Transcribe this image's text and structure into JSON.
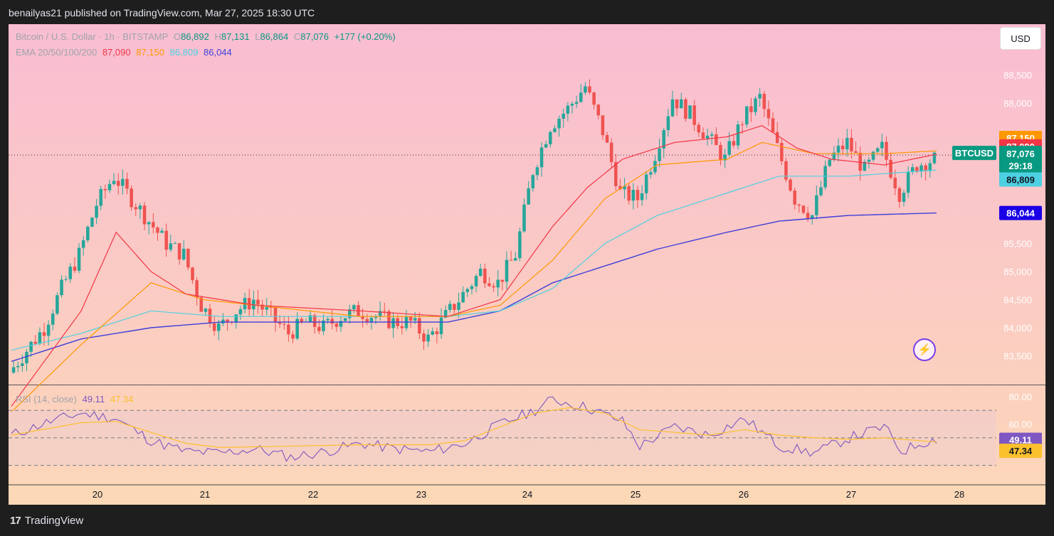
{
  "header": {
    "publisher": "benailyas21 published on TradingView.com, Mar 27, 2025 18:30 UTC"
  },
  "legend": {
    "symbol": "Bitcoin / U.S. Dollar · 1h · BITSTAMP",
    "o_label": "O",
    "o": "86,892",
    "h_label": "H",
    "h": "87,131",
    "l_label": "L",
    "l": "86,864",
    "c_label": "C",
    "c": "87,076",
    "change": "+177 (+0.20%)",
    "ema_label": "EMA 20/50/100/200",
    "ema20": "87,090",
    "ema50": "87,150",
    "ema100": "86,809",
    "ema200": "86,044"
  },
  "rsi_legend": {
    "label": "RSI (14, close)",
    "rsi": "49.11",
    "ma": "47.34"
  },
  "currency_button": "USD",
  "footer": {
    "brand": "TradingView",
    "logo": "17"
  },
  "colors": {
    "up": "#26a69a",
    "down": "#ef5350",
    "ema20": "#f23645",
    "ema50": "#ff9800",
    "ema100": "#4dd0e1",
    "ema200": "#3f3fd9",
    "rsi": "#7e57c2",
    "rsi_ma": "#fbc02d"
  },
  "chart_data": {
    "type": "candlestick",
    "symbol": "BTCUSD",
    "interval": "1h",
    "x_ticks": [
      "20",
      "21",
      "22",
      "23",
      "24",
      "25",
      "26",
      "27",
      "28"
    ],
    "y_ticks": [
      "83,500",
      "84,000",
      "84,500",
      "85,000",
      "85,500",
      "88,000",
      "88,500"
    ],
    "ylim": [
      83000,
      88900
    ],
    "price_badges": [
      {
        "label": "87,150",
        "kind": "ema50"
      },
      {
        "label": "87,090",
        "kind": "ema20"
      },
      {
        "label": "BTCUSD",
        "kind": "symbol"
      },
      {
        "label": "87,076",
        "kind": "price"
      },
      {
        "label": "29:18",
        "kind": "countdown"
      },
      {
        "label": "86,809",
        "kind": "ema100"
      },
      {
        "label": "86,044",
        "kind": "ema200"
      }
    ],
    "last_price": 87076,
    "price_anchors": [
      [
        0,
        83200
      ],
      [
        1,
        83600
      ],
      [
        2,
        84000
      ],
      [
        3,
        84700
      ],
      [
        4,
        85300
      ],
      [
        5,
        86200
      ],
      [
        6,
        86700
      ],
      [
        7,
        86300
      ],
      [
        8,
        85900
      ],
      [
        9,
        85500
      ],
      [
        10,
        85300
      ],
      [
        11,
        84400
      ],
      [
        12,
        84000
      ],
      [
        13,
        84300
      ],
      [
        14,
        84500
      ],
      [
        15,
        84200
      ],
      [
        16,
        83900
      ],
      [
        17,
        84100
      ],
      [
        18,
        84000
      ],
      [
        19,
        84200
      ],
      [
        20,
        84300
      ],
      [
        21,
        84200
      ],
      [
        22,
        84100
      ],
      [
        23,
        84100
      ],
      [
        24,
        83800
      ],
      [
        25,
        84200
      ],
      [
        26,
        84600
      ],
      [
        27,
        85000
      ],
      [
        28,
        84800
      ],
      [
        29,
        85300
      ],
      [
        30,
        86800
      ],
      [
        31,
        87600
      ],
      [
        32,
        87900
      ],
      [
        33,
        88300
      ],
      [
        34,
        87500
      ],
      [
        35,
        86400
      ],
      [
        36,
        86300
      ],
      [
        37,
        87100
      ],
      [
        38,
        88100
      ],
      [
        39,
        87800
      ],
      [
        40,
        87400
      ],
      [
        41,
        87000
      ],
      [
        42,
        87700
      ],
      [
        43,
        88100
      ],
      [
        44,
        87200
      ],
      [
        45,
        86300
      ],
      [
        46,
        86000
      ],
      [
        47,
        87000
      ],
      [
        48,
        87300
      ],
      [
        49,
        86800
      ],
      [
        50,
        87200
      ],
      [
        51,
        86400
      ],
      [
        52,
        86900
      ],
      [
        53,
        87000
      ]
    ],
    "ema20_anchors": [
      [
        0,
        82600
      ],
      [
        4,
        84300
      ],
      [
        6,
        85700
      ],
      [
        8,
        85000
      ],
      [
        10,
        84600
      ],
      [
        14,
        84400
      ],
      [
        20,
        84300
      ],
      [
        25,
        84200
      ],
      [
        28,
        84500
      ],
      [
        31,
        85800
      ],
      [
        33,
        86500
      ],
      [
        35,
        87000
      ],
      [
        38,
        87300
      ],
      [
        41,
        87400
      ],
      [
        43,
        87600
      ],
      [
        45,
        87200
      ],
      [
        47,
        87000
      ],
      [
        50,
        86900
      ],
      [
        53,
        87090
      ]
    ],
    "ema50_anchors": [
      [
        0,
        82500
      ],
      [
        4,
        83700
      ],
      [
        8,
        84800
      ],
      [
        11,
        84500
      ],
      [
        20,
        84200
      ],
      [
        25,
        84200
      ],
      [
        28,
        84400
      ],
      [
        31,
        85200
      ],
      [
        34,
        86300
      ],
      [
        37,
        86900
      ],
      [
        41,
        87000
      ],
      [
        43,
        87300
      ],
      [
        46,
        87100
      ],
      [
        50,
        87100
      ],
      [
        53,
        87150
      ]
    ],
    "ema100_anchors": [
      [
        0,
        83600
      ],
      [
        4,
        83900
      ],
      [
        8,
        84300
      ],
      [
        12,
        84200
      ],
      [
        20,
        84200
      ],
      [
        25,
        84200
      ],
      [
        28,
        84300
      ],
      [
        31,
        84700
      ],
      [
        34,
        85500
      ],
      [
        37,
        86000
      ],
      [
        41,
        86400
      ],
      [
        44,
        86700
      ],
      [
        48,
        86700
      ],
      [
        53,
        86809
      ]
    ],
    "ema200_anchors": [
      [
        0,
        83400
      ],
      [
        4,
        83800
      ],
      [
        8,
        84000
      ],
      [
        12,
        84100
      ],
      [
        20,
        84100
      ],
      [
        25,
        84100
      ],
      [
        28,
        84300
      ],
      [
        31,
        84800
      ],
      [
        34,
        85100
      ],
      [
        37,
        85400
      ],
      [
        41,
        85700
      ],
      [
        44,
        85900
      ],
      [
        48,
        86000
      ],
      [
        53,
        86044
      ]
    ],
    "rsi": {
      "y_ticks": [
        "80.00",
        "60.00"
      ],
      "ylim": [
        20,
        82
      ],
      "upper": 70,
      "middle": 50,
      "lower": 30,
      "last_rsi": 49.11,
      "last_ma": 47.34,
      "rsi_anchors": [
        [
          0,
          52
        ],
        [
          2,
          61
        ],
        [
          4,
          68
        ],
        [
          6,
          64
        ],
        [
          8,
          48
        ],
        [
          10,
          40
        ],
        [
          12,
          39
        ],
        [
          14,
          42
        ],
        [
          16,
          36
        ],
        [
          18,
          40
        ],
        [
          20,
          46
        ],
        [
          22,
          42
        ],
        [
          24,
          40
        ],
        [
          26,
          46
        ],
        [
          28,
          60
        ],
        [
          30,
          70
        ],
        [
          31,
          78
        ],
        [
          33,
          72
        ],
        [
          35,
          62
        ],
        [
          36,
          44
        ],
        [
          38,
          58
        ],
        [
          40,
          52
        ],
        [
          42,
          64
        ],
        [
          44,
          44
        ],
        [
          46,
          39
        ],
        [
          48,
          50
        ],
        [
          50,
          58
        ],
        [
          51,
          40
        ],
        [
          52,
          46
        ],
        [
          53,
          49
        ]
      ],
      "ma_anchors": [
        [
          0,
          52
        ],
        [
          4,
          61
        ],
        [
          6,
          62
        ],
        [
          8,
          54
        ],
        [
          10,
          46
        ],
        [
          12,
          43
        ],
        [
          16,
          44
        ],
        [
          20,
          45
        ],
        [
          24,
          45
        ],
        [
          26,
          48
        ],
        [
          28,
          58
        ],
        [
          30,
          68
        ],
        [
          32,
          72
        ],
        [
          34,
          68
        ],
        [
          36,
          56
        ],
        [
          38,
          54
        ],
        [
          40,
          52
        ],
        [
          42,
          56
        ],
        [
          44,
          52
        ],
        [
          46,
          50
        ],
        [
          48,
          49
        ],
        [
          50,
          50
        ],
        [
          52,
          48
        ],
        [
          53,
          47
        ]
      ]
    }
  }
}
